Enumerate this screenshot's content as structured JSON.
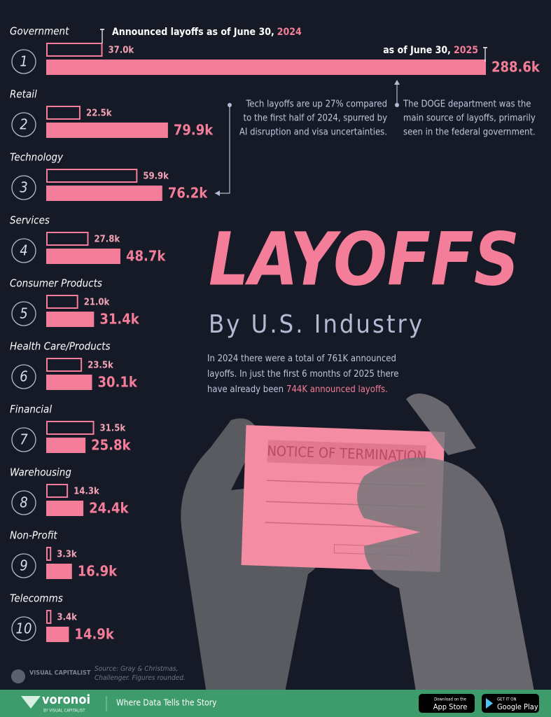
{
  "chart_data": {
    "type": "bar",
    "title": "LAYOFFS",
    "subtitle": "By U.S. Industry",
    "categories": [
      "Government",
      "Retail",
      "Technology",
      "Services",
      "Consumer Products",
      "Health Care/Products",
      "Financial",
      "Warehousing",
      "Non-Profit",
      "Telecomms"
    ],
    "ranks": [
      1,
      2,
      3,
      4,
      5,
      6,
      7,
      8,
      9,
      10
    ],
    "series": [
      {
        "name": "2024",
        "color": "#f47e99",
        "legend": "Announced layoffs as of June 30,",
        "values": [
          37.0,
          22.5,
          59.9,
          27.8,
          21.0,
          23.5,
          31.5,
          14.3,
          3.3,
          3.4
        ],
        "value_labels": [
          "37.0k",
          "22.5k",
          "59.9k",
          "27.8k",
          "21.0k",
          "23.5k",
          "31.5k",
          "14.3k",
          "3.3k",
          "3.4k"
        ]
      },
      {
        "name": "2025",
        "color": "#f47e99",
        "legend": "as of June 30,",
        "values": [
          288.6,
          79.9,
          76.2,
          48.7,
          31.4,
          30.1,
          25.8,
          24.4,
          16.9,
          14.9
        ],
        "value_labels": [
          "288.6k",
          "79.9k",
          "76.2k",
          "48.7k",
          "31.4k",
          "30.1k",
          "25.8k",
          "24.4k",
          "16.9k",
          "14.9k"
        ]
      }
    ],
    "annotations": [
      [
        "Tech layoffs are up 27% compared",
        "to the first half of 2024, spurred by",
        "AI disruption and visa uncertainties."
      ],
      [
        "The DOGE department was the",
        "main source of layoffs, primarily",
        "seen in the federal government."
      ]
    ],
    "description": [
      "In 2024 there were a total of 761K announced",
      "layoffs. In just the first 6 months of 2025 there",
      "have already been"
    ],
    "description_highlight": "744K announced layoffs.",
    "image_text": "NOTICE OF TERMINATION",
    "source": [
      "Source: Gray & Christmas,",
      "Challenger. Figures rounded."
    ]
  },
  "footer": {
    "publisher": "VISUAL CAPITALIST",
    "brand": "voronoi",
    "brand_sub": "BY VISUAL CAPITALIST",
    "tagline": "Where Data Tells the Story",
    "app_store": [
      "Download on the",
      "App Store"
    ],
    "google_play": [
      "GET IT ON",
      "Google Play"
    ]
  }
}
